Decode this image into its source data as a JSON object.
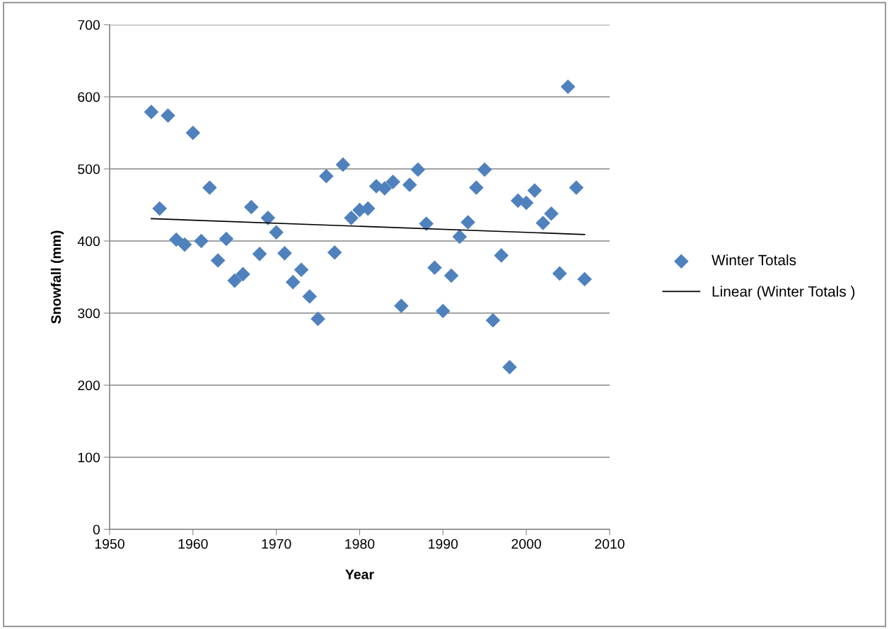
{
  "chart_data": {
    "type": "scatter",
    "xlabel": "Year",
    "ylabel": "Snowfall (mm)",
    "xlim": [
      1950,
      2010
    ],
    "xticks": [
      1950,
      1960,
      1970,
      1980,
      1990,
      2000,
      2010
    ],
    "ylim": [
      0,
      700
    ],
    "yticks": [
      0,
      100,
      200,
      300,
      400,
      500,
      600,
      700
    ],
    "grid": "y",
    "legend": "right",
    "marker": "diamond",
    "series": [
      {
        "name": "Winter Totals",
        "color": "#4f81bd",
        "x": [
          1955,
          1956,
          1957,
          1958,
          1959,
          1960,
          1961,
          1962,
          1963,
          1964,
          1965,
          1966,
          1967,
          1968,
          1969,
          1970,
          1971,
          1972,
          1973,
          1974,
          1975,
          1976,
          1977,
          1978,
          1979,
          1980,
          1981,
          1982,
          1983,
          1984,
          1985,
          1986,
          1987,
          1988,
          1989,
          1990,
          1991,
          1992,
          1993,
          1994,
          1995,
          1996,
          1997,
          1998,
          1999,
          2000,
          2001,
          2002,
          2003,
          2004,
          2005,
          2006,
          2007
        ],
        "values": [
          579,
          445,
          574,
          402,
          395,
          550,
          400,
          474,
          373,
          403,
          345,
          354,
          447,
          382,
          432,
          412,
          383,
          343,
          360,
          323,
          292,
          490,
          384,
          506,
          432,
          443,
          445,
          476,
          473,
          482,
          310,
          478,
          499,
          424,
          363,
          303,
          352,
          406,
          426,
          474,
          499,
          290,
          380,
          225,
          456,
          453,
          470,
          425,
          438,
          355,
          614,
          474,
          347
        ]
      },
      {
        "name": "Linear (Winter Totals )",
        "type": "line",
        "color": "#000000",
        "marker": "none",
        "line_style": "solid",
        "x": [
          1955,
          2007
        ],
        "values": [
          431,
          409
        ]
      }
    ]
  }
}
